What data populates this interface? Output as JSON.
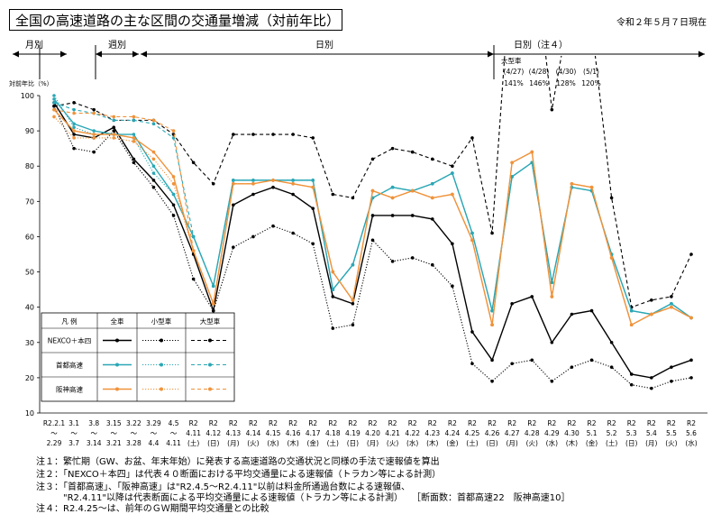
{
  "header": {
    "title": "全国の高速道路の主な区間の交通量増減（対前年比）",
    "date": "令和２年５月７日現在"
  },
  "sections": [
    {
      "label": "月別"
    },
    {
      "label": "週別"
    },
    {
      "label": "日別"
    },
    {
      "label": "日別（注４）"
    }
  ],
  "large_vehicle_note": {
    "title": "大型車",
    "dates": [
      "(4/27)",
      "(4/28)",
      "(4/30)",
      "(5/1)"
    ],
    "values": [
      "141%",
      "146%",
      "128%",
      "120%"
    ]
  },
  "legend": {
    "header": [
      "凡 例",
      "全車",
      "小型車",
      "大型車"
    ],
    "rows": [
      "NEXCO＋本四",
      "首都高速",
      "阪神高速"
    ]
  },
  "notes": [
    "注１：繁忙期（GW、お盆、年末年始）に発表する高速道路の交通状況と同様の手法で速報値を算出",
    "注２：「NEXCO＋本四」は代表４０断面における平均交通量による速報値（トラカン等による計測）",
    "注３：「首都高速」、「阪神高速」は\"R2.4.5～R2.4.11\"以前は料金所通過台数による速報値、",
    "　　　\"R2.4.11\"以降は代表断面による平均交通量による速報値（トラカン等による計測）　　［断面数：首都高速22　阪神高速10］",
    "注４：R2.4.25～は、前年のＧＷ期間平均交通量との比較"
  ],
  "chart_data": {
    "type": "line",
    "ylabel": "対前年比（%）",
    "ylim": [
      10,
      100
    ],
    "yticks": [
      10,
      20,
      30,
      40,
      50,
      60,
      70,
      80,
      90,
      100
    ],
    "categories": [
      [
        "R2.2.1",
        "～",
        "2.29"
      ],
      [
        "3.1",
        "～",
        "3.7"
      ],
      [
        "3.8",
        "～",
        "3.14"
      ],
      [
        "3.15",
        "～",
        "3.21"
      ],
      [
        "3.22",
        "～",
        "3.28"
      ],
      [
        "3.29",
        "～",
        "4.4"
      ],
      [
        "4.5",
        "～",
        "4.11"
      ],
      [
        "R2",
        "4.11",
        "(土)"
      ],
      [
        "R2",
        "4.12",
        "(日)"
      ],
      [
        "R2",
        "4.13",
        "(月)"
      ],
      [
        "R2",
        "4.14",
        "(火)"
      ],
      [
        "R2",
        "4.15",
        "(水)"
      ],
      [
        "R2",
        "4.16",
        "(木)"
      ],
      [
        "R2",
        "4.17",
        "(金)"
      ],
      [
        "R2",
        "4.18",
        "(土)"
      ],
      [
        "R2",
        "4.19",
        "(日)"
      ],
      [
        "R2",
        "4.20",
        "(月)"
      ],
      [
        "R2",
        "4.21",
        "(火)"
      ],
      [
        "R2",
        "4.22",
        "(水)"
      ],
      [
        "R2",
        "4.23",
        "(木)"
      ],
      [
        "R2",
        "4.24",
        "(金)"
      ],
      [
        "R2",
        "4.25",
        "(土)"
      ],
      [
        "R2",
        "4.26",
        "(日)"
      ],
      [
        "R2",
        "4.27",
        "(月)"
      ],
      [
        "R2",
        "4.28",
        "(火)"
      ],
      [
        "R2",
        "4.29",
        "(水)"
      ],
      [
        "R2",
        "4.30",
        "(木)"
      ],
      [
        "R2",
        "5.1",
        "(金)"
      ],
      [
        "R2",
        "5.2",
        "(土)"
      ],
      [
        "R2",
        "5.3",
        "(日)"
      ],
      [
        "R2",
        "5.4",
        "(月)"
      ],
      [
        "R2",
        "5.5",
        "(火)"
      ],
      [
        "R2",
        "5.6",
        "(水)"
      ]
    ],
    "series": [
      {
        "name": "NEXCO＋本四 全車",
        "color": "#000000",
        "style": "solid",
        "values": [
          98,
          89,
          88,
          91,
          82,
          76,
          69,
          55,
          39,
          69,
          72,
          74,
          72,
          68,
          43,
          41,
          66,
          66,
          66,
          65,
          58,
          33,
          25,
          41,
          43,
          30,
          38,
          39,
          30,
          21,
          20,
          23,
          25
        ]
      },
      {
        "name": "NEXCO＋本四 小型車",
        "color": "#000000",
        "style": "dotted",
        "values": [
          97,
          85,
          84,
          90,
          81,
          74,
          66,
          48,
          39,
          57,
          60,
          63,
          61,
          58,
          34,
          35,
          59,
          53,
          54,
          52,
          46,
          24,
          19,
          24,
          25,
          19,
          23,
          25,
          23,
          18,
          17,
          19,
          20
        ]
      },
      {
        "name": "NEXCO＋本四 大型車",
        "color": "#000000",
        "style": "dashed",
        "values": [
          97,
          98,
          96,
          93,
          93,
          93,
          89,
          81,
          75,
          89,
          89,
          89,
          89,
          88,
          72,
          71,
          82,
          85,
          84,
          82,
          80,
          88,
          61,
          141,
          146,
          96,
          128,
          120,
          71,
          40,
          42,
          43,
          55
        ]
      },
      {
        "name": "首都高速 全車",
        "color": "#2aa7b5",
        "style": "solid",
        "values": [
          99,
          92,
          90,
          89,
          89,
          80,
          72,
          60,
          46,
          76,
          76,
          76,
          76,
          76,
          45,
          52,
          71,
          74,
          73,
          75,
          78,
          61,
          39,
          77,
          81,
          47,
          74,
          73,
          55,
          39,
          38,
          41,
          37
        ]
      },
      {
        "name": "首都高速 小型車",
        "color": "#2aa7b5",
        "style": "dotted",
        "values": [
          100,
          91,
          89,
          89,
          88,
          78,
          72,
          60,
          46,
          76,
          76,
          76,
          76,
          76,
          45,
          52,
          71,
          74,
          73,
          75,
          78,
          61,
          39,
          77,
          81,
          47,
          74,
          73,
          55,
          39,
          38,
          41,
          37
        ]
      },
      {
        "name": "首都高速 大型車",
        "color": "#2aa7b5",
        "style": "dashed",
        "values": [
          98,
          96,
          95,
          93,
          93,
          92,
          88,
          60,
          46,
          76,
          76,
          76,
          76,
          76,
          45,
          52,
          71,
          74,
          73,
          75,
          78,
          61,
          39,
          77,
          81,
          47,
          74,
          73,
          55,
          39,
          38,
          41,
          37
        ]
      },
      {
        "name": "阪神高速 全車",
        "color": "#f0923a",
        "style": "solid",
        "values": [
          96,
          90,
          89,
          89,
          88,
          84,
          77,
          56,
          41,
          75,
          75,
          76,
          75,
          74,
          50,
          42,
          73,
          71,
          73,
          71,
          72,
          59,
          35,
          81,
          84,
          43,
          75,
          74,
          54,
          35,
          38,
          40,
          37
        ]
      },
      {
        "name": "阪神高速 小型車",
        "color": "#f0923a",
        "style": "dotted",
        "values": [
          94,
          88,
          88,
          88,
          87,
          82,
          75,
          56,
          41,
          75,
          75,
          76,
          75,
          74,
          50,
          42,
          73,
          71,
          73,
          71,
          72,
          59,
          35,
          81,
          84,
          43,
          75,
          74,
          54,
          35,
          38,
          40,
          37
        ]
      },
      {
        "name": "阪神高速 大型車",
        "color": "#f0923a",
        "style": "dashed",
        "values": [
          96,
          95,
          95,
          94,
          94,
          93,
          90,
          56,
          41,
          75,
          75,
          76,
          75,
          74,
          50,
          42,
          73,
          71,
          73,
          71,
          72,
          59,
          35,
          81,
          84,
          43,
          75,
          74,
          54,
          35,
          38,
          40,
          37
        ]
      }
    ]
  }
}
